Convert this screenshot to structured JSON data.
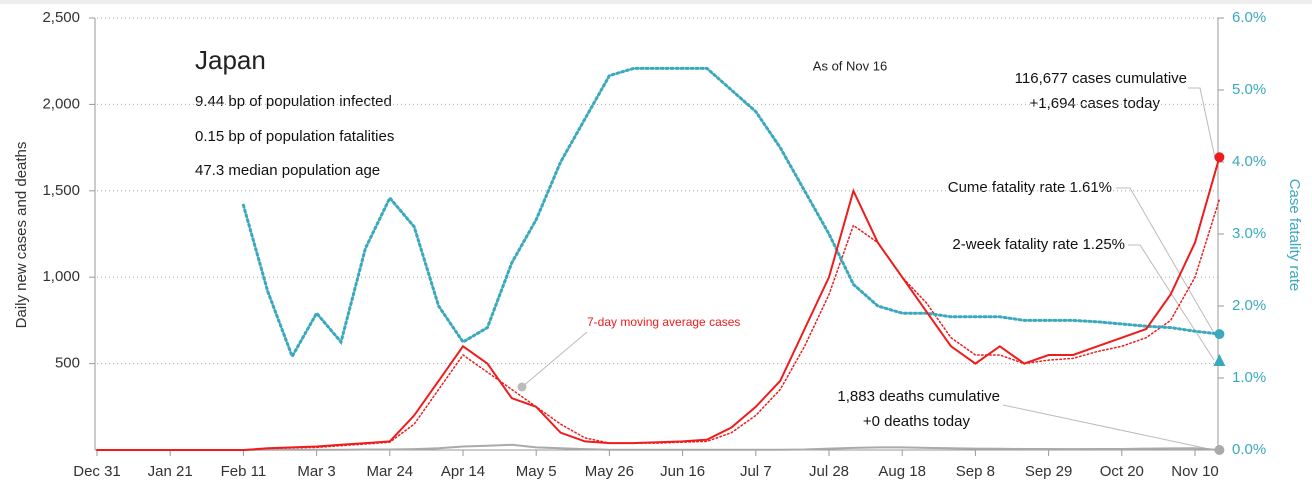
{
  "chart_data": {
    "type": "line",
    "annotations": {
      "country": "Japan",
      "stats": [
        "9.44 bp of population infected",
        "0.15 bp of population fatalities",
        "47.3 median population age"
      ],
      "as_of": "As of Nov 16",
      "cases_cumulative": "116,677 cases cumulative",
      "cases_today": "+1,694 cases today",
      "cume_rate": "Cume fatality rate 1.61%",
      "two_week_rate": "2-week fatality rate 1.25%",
      "deaths_cumulative": "1,883 deaths cumulative",
      "deaths_today": "+0 deaths today",
      "avg_label": "7-day moving average cases"
    },
    "ylabel": "Daily new cases and deaths",
    "y2label": "Case fatality rate",
    "categories": [
      "Dec 31",
      null,
      null,
      "Jan 21",
      null,
      null,
      "Feb 11",
      null,
      null,
      "Mar 3",
      null,
      null,
      "Mar 24",
      null,
      null,
      "Apr 14",
      null,
      null,
      "May 5",
      null,
      null,
      "May 26",
      null,
      null,
      "Jun 16",
      null,
      null,
      "Jul 7",
      null,
      null,
      "Jul 28",
      null,
      null,
      "Aug 18",
      null,
      null,
      "Sep 8",
      null,
      null,
      "Sep 29",
      null,
      null,
      "Oct 20",
      null,
      null,
      "Nov 10",
      null
    ],
    "series": [
      {
        "color": "#ee1c1c",
        "style": "solid",
        "axis": "y",
        "values": [
          0,
          0,
          0,
          0,
          0,
          0,
          0,
          10,
          15,
          20,
          30,
          40,
          50,
          200,
          400,
          600,
          500,
          300,
          250,
          100,
          50,
          40,
          40,
          45,
          50,
          60,
          130,
          250,
          400,
          700,
          1000,
          1500,
          1200,
          1000,
          800,
          600,
          500,
          600,
          500,
          550,
          550,
          600,
          650,
          700,
          900,
          1200,
          1694
        ]
      },
      {
        "color": "#ee1c1c",
        "style": "dotted",
        "axis": "y",
        "values": [
          0,
          0,
          0,
          0,
          0,
          0,
          0,
          8,
          12,
          15,
          25,
          35,
          45,
          150,
          350,
          550,
          450,
          350,
          250,
          150,
          70,
          40,
          40,
          40,
          45,
          50,
          100,
          200,
          350,
          600,
          900,
          1300,
          1200,
          1000,
          850,
          650,
          550,
          550,
          500,
          520,
          530,
          570,
          600,
          650,
          750,
          1000,
          1450
        ]
      },
      {
        "color": "#aaaaaa",
        "style": "solid",
        "axis": "y",
        "values": [
          0,
          0,
          0,
          0,
          0,
          0,
          0,
          1,
          1,
          2,
          2,
          3,
          3,
          5,
          10,
          20,
          25,
          30,
          15,
          10,
          5,
          2,
          1,
          1,
          1,
          1,
          1,
          1,
          2,
          3,
          8,
          12,
          15,
          15,
          12,
          10,
          8,
          7,
          6,
          6,
          5,
          6,
          6,
          8,
          9,
          10,
          0
        ]
      },
      {
        "color": "#3aa9bd",
        "style": "dotted",
        "axis": "y2",
        "values": [
          null,
          null,
          null,
          null,
          null,
          null,
          3.4,
          2.2,
          1.3,
          1.9,
          1.5,
          2.8,
          3.5,
          3.1,
          2.0,
          1.5,
          1.7,
          2.6,
          3.2,
          4.0,
          4.6,
          5.2,
          5.3,
          5.3,
          5.3,
          5.3,
          5.0,
          4.7,
          4.2,
          3.6,
          3.0,
          2.3,
          2.0,
          1.9,
          1.9,
          1.85,
          1.85,
          1.85,
          1.8,
          1.8,
          1.8,
          1.78,
          1.75,
          1.72,
          1.7,
          1.65,
          1.61
        ]
      }
    ],
    "two_week_cfr": 1.25,
    "ylim": [
      0,
      2500
    ],
    "yticks": [
      500,
      {
        "value": 1000,
        "label": "1,000"
      },
      {
        "value": 1500,
        "label": "1,500"
      },
      {
        "value": 2000,
        "label": "2,000"
      },
      {
        "value": 2500,
        "label": "2,500"
      }
    ],
    "y2lim": [
      0,
      6
    ],
    "y2ticks": [
      {
        "value": 0,
        "label": "0.0%"
      },
      {
        "value": 1,
        "label": "1.0%"
      },
      {
        "value": 2,
        "label": "2.0%"
      },
      {
        "value": 3,
        "label": "3.0%"
      },
      {
        "value": 4,
        "label": "4.0%"
      },
      {
        "value": 5,
        "label": "5.0%"
      },
      {
        "value": 6,
        "label": "6.0%"
      }
    ],
    "grid": true
  }
}
